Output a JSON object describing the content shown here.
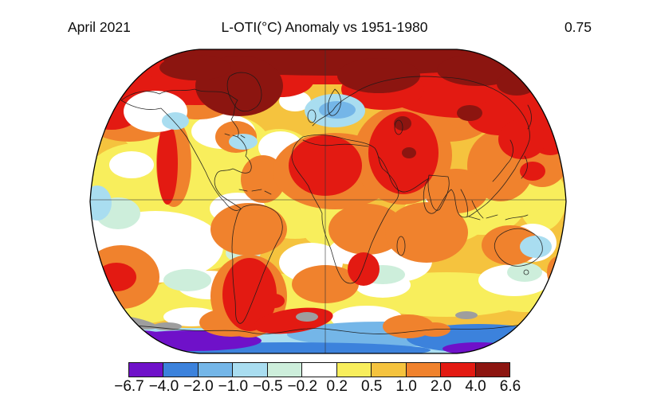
{
  "header": {
    "date": "April 2021",
    "title": "L-OTI(°C) Anomaly vs 1951-1980",
    "value": "0.75"
  },
  "palette": {
    "purple": "#6F11C9",
    "blue": "#3C82DC",
    "lightblue": "#74B6E8",
    "cyan": "#A9DDF0",
    "palegreen": "#CDEEDB",
    "white": "#FFFFFF",
    "yellow": "#F8EE5C",
    "gold": "#F5C33E",
    "orange": "#F0822D",
    "red": "#E31A12",
    "darkred": "#8C1510",
    "gray": "#9E9E9E",
    "outline": "#1A1A1A"
  },
  "chart_data": {
    "type": "heatmap",
    "title": "L-OTI(°C) Anomaly vs 1951-1980",
    "period": "April 2021",
    "baseline": "1951-1980",
    "units": "°C",
    "global_mean_anomaly_c": 0.75,
    "projection": "robinson",
    "gridlines": [
      "equator",
      "prime-meridian"
    ],
    "colorbar": {
      "tick_labels": [
        "−6.7",
        "−4.0",
        "−2.0",
        "−1.0",
        "−0.5",
        "−0.2",
        "0.2",
        "0.5",
        "1.0",
        "2.0",
        "4.0",
        "6.6"
      ],
      "segment_colors": [
        "#6F11C9",
        "#3C82DC",
        "#74B6E8",
        "#A9DDF0",
        "#CDEEDB",
        "#FFFFFF",
        "#F8EE5C",
        "#F5C33E",
        "#F0822D",
        "#E31A12",
        "#8C1510"
      ],
      "missing_data_color": "#9E9E9E"
    },
    "notable_regions": [
      {
        "region": "Arctic / Siberia",
        "anomaly_band_c": "4.0 to 6.6"
      },
      {
        "region": "Northern & Eastern Europe",
        "anomaly_band_c": "−2.0 to −0.5"
      },
      {
        "region": "Sahara / North Africa",
        "anomaly_band_c": "2.0 to 4.0"
      },
      {
        "region": "Middle East",
        "anomaly_band_c": "2.0 to 4.0"
      },
      {
        "region": "Northwest North America coast",
        "anomaly_band_c": "2.0 to 4.0"
      },
      {
        "region": "Northeast Asia / Okhotsk",
        "anomaly_band_c": "2.0 to 4.0"
      },
      {
        "region": "Argentina / Patagonia",
        "anomaly_band_c": "2.0 to 4.0"
      },
      {
        "region": "Southern South Africa",
        "anomaly_band_c": "2.0 to 4.0"
      },
      {
        "region": "Antarctic Peninsula",
        "anomaly_band_c": "2.0 to 4.0"
      },
      {
        "region": "Antarctic coastal ocean",
        "anomaly_band_c": "−6.7 to −1.0"
      },
      {
        "region": "Tropical oceans",
        "anomaly_band_c": "0.2 to 1.0"
      }
    ]
  }
}
